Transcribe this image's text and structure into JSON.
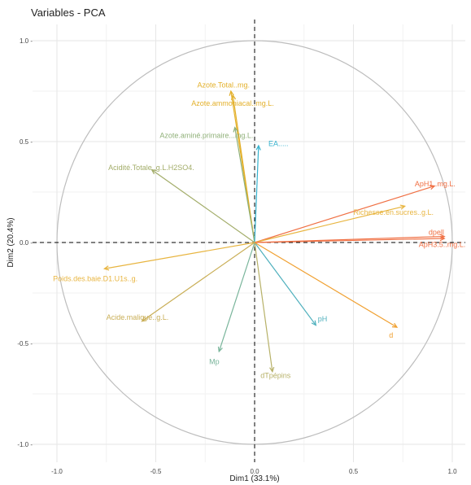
{
  "chart_data": {
    "type": "scatter",
    "title": "Variables - PCA",
    "xlabel": "Dim1 (33.1%)",
    "ylabel": "Dim2 (20.4%)",
    "xlim": [
      -1.05,
      1.05
    ],
    "ylim": [
      -1.05,
      1.05
    ],
    "xticks": [
      -1.0,
      -0.5,
      0.0,
      0.5,
      1.0
    ],
    "yticks": [
      -1.0,
      -0.5,
      0.0,
      0.5,
      1.0
    ],
    "xtick_labels": [
      "-1.0",
      "-0.5",
      "0.0",
      "0.5",
      "1.0"
    ],
    "ytick_labels": [
      "-1.0 -",
      "-0.5 -",
      "0.0 -",
      "0.5 -",
      "1.0 -"
    ],
    "grid": true,
    "unit_circle": true,
    "colors": {
      "circle": "#bdbdbd",
      "grid_major": "#e6e6e6",
      "grid_minor": "#f2f2f2",
      "zero_line": "#000000"
    },
    "variables": [
      {
        "label": "Azote.Total..mg.",
        "x": -0.12,
        "y": 0.75,
        "color": "#e3b02a"
      },
      {
        "label": "Azote.ammoniacal..mg.L.",
        "x": -0.11,
        "y": 0.73,
        "color": "#e3b02a"
      },
      {
        "label": "Azote.aminé.primaire...mg.L.",
        "x": -0.1,
        "y": 0.57,
        "color": "#8fb078"
      },
      {
        "label": "EA.....",
        "x": 0.02,
        "y": 0.48,
        "color": "#35b2ce"
      },
      {
        "label": "Acidité.Totale..g.L.H2SO4.",
        "x": -0.52,
        "y": 0.36,
        "color": "#a3ad6a"
      },
      {
        "label": "ApH1..mg.L.",
        "x": 0.91,
        "y": 0.28,
        "color": "#f07044"
      },
      {
        "label": "Richesse.en.sucres..g.L.",
        "x": 0.76,
        "y": 0.18,
        "color": "#e8b540"
      },
      {
        "label": "dpell",
        "x": 0.96,
        "y": 0.03,
        "color": "#f07044"
      },
      {
        "label": "ApH3.5..mg.L.",
        "x": 0.96,
        "y": 0.02,
        "color": "#f07044"
      },
      {
        "label": "Poids.des.baie.D1.U1s..g.",
        "x": -0.76,
        "y": -0.13,
        "color": "#e8b540"
      },
      {
        "label": "Acide.malique..g.L.",
        "x": -0.57,
        "y": -0.39,
        "color": "#c9ae56"
      },
      {
        "label": "pH",
        "x": 0.31,
        "y": -0.41,
        "color": "#4fb0bd"
      },
      {
        "label": "d",
        "x": 0.72,
        "y": -0.42,
        "color": "#f0a030"
      },
      {
        "label": "Mp",
        "x": -0.18,
        "y": -0.54,
        "color": "#79b59b"
      },
      {
        "label": "dTpépins",
        "x": 0.09,
        "y": -0.64,
        "color": "#b7b168"
      }
    ],
    "label_positions": [
      {
        "label": "Azote.Total..mg.",
        "lx": -0.29,
        "ly": 0.78
      },
      {
        "label": "Azote.ammoniacal..mg.L.",
        "lx": -0.32,
        "ly": 0.69
      },
      {
        "label": "Azote.aminé.primaire...mg.L.",
        "lx": -0.48,
        "ly": 0.53
      },
      {
        "label": "EA.....",
        "lx": 0.07,
        "ly": 0.49
      },
      {
        "label": "Acidité.Totale..g.L.H2SO4.",
        "lx": -0.74,
        "ly": 0.37
      },
      {
        "label": "ApH1..mg.L.",
        "lx": 0.81,
        "ly": 0.29
      },
      {
        "label": "Richesse.en.sucres..g.L.",
        "lx": 0.5,
        "ly": 0.15
      },
      {
        "label": "dpell",
        "lx": 0.88,
        "ly": 0.05
      },
      {
        "label": "ApH3.5..mg.L.",
        "lx": 0.83,
        "ly": -0.01
      },
      {
        "label": "Poids.des.baie.D1.U1s..g.",
        "lx": -1.02,
        "ly": -0.18
      },
      {
        "label": "Acide.malique..g.L.",
        "lx": -0.75,
        "ly": -0.37
      },
      {
        "label": "pH",
        "lx": 0.32,
        "ly": -0.38
      },
      {
        "label": "d",
        "lx": 0.68,
        "ly": -0.46
      },
      {
        "label": "Mp",
        "lx": -0.23,
        "ly": -0.59
      },
      {
        "label": "dTpépins",
        "lx": 0.03,
        "ly": -0.66
      }
    ]
  }
}
